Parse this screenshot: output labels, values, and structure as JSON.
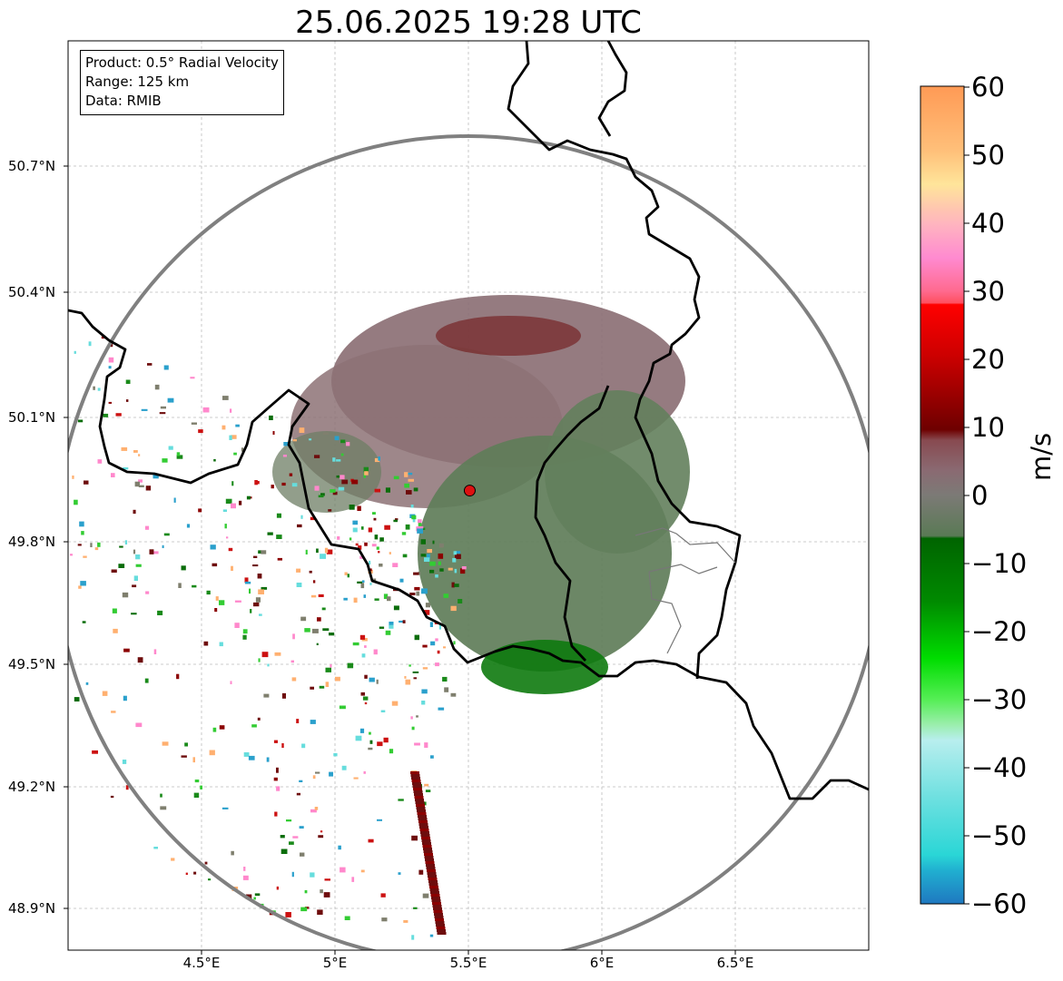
{
  "title": "25.06.2025 19:28 UTC",
  "info_box": {
    "product": "Product: 0.5° Radial Velocity",
    "range": "Range: 125 km",
    "data": "Data: RMIB"
  },
  "axes": {
    "lat_ticks": [
      "50.7°N",
      "50.4°N",
      "50.1°N",
      "49.8°N",
      "49.5°N",
      "49.2°N",
      "48.9°N"
    ],
    "lon_ticks": [
      "4.5°E",
      "5°E",
      "5.5°E",
      "6°E",
      "6.5°E"
    ],
    "lon_range": [
      4.0,
      7.0
    ],
    "lat_range": [
      48.8,
      51.0
    ],
    "grid": true
  },
  "radar_site": {
    "lon": 5.505,
    "lat": 49.915,
    "color": "#dd1111"
  },
  "colorbar": {
    "unit": "m/s",
    "ticks": [
      "60",
      "50",
      "40",
      "30",
      "20",
      "10",
      "0",
      "−10",
      "−20",
      "−30",
      "−40",
      "−50",
      "−60"
    ],
    "range": [
      -60,
      60
    ]
  },
  "colors": {
    "range_ring": "#808080",
    "border": "#000000",
    "inbound_green": "#1a8a1a",
    "outbound_red": "#8b0000",
    "near_zero": "#7d6e6e"
  }
}
